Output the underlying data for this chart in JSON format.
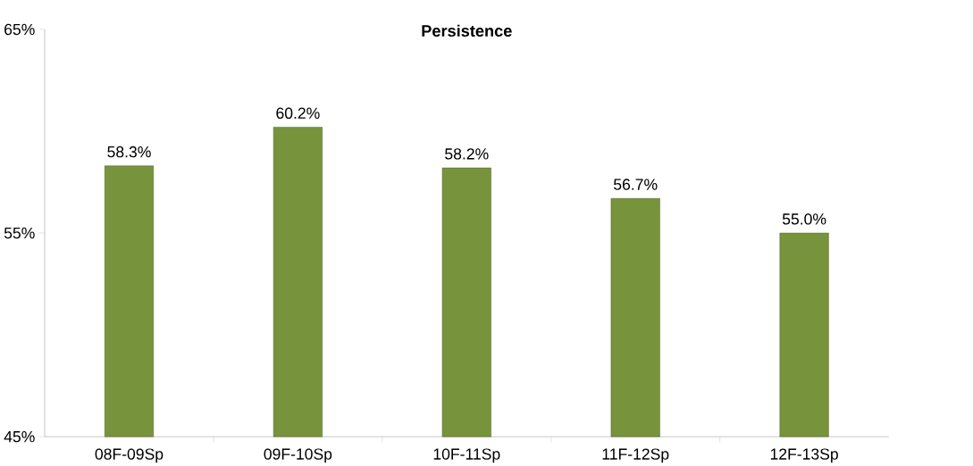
{
  "chart_data": {
    "type": "bar",
    "title": "Persistence",
    "categories": [
      "08F-09Sp",
      "09F-10Sp",
      "10F-11Sp",
      "11F-12Sp",
      "12F-13Sp"
    ],
    "values": [
      58.3,
      60.2,
      58.2,
      56.7,
      55.0
    ],
    "value_labels": [
      "58.3%",
      "60.2%",
      "58.2%",
      "56.7%",
      "55.0%"
    ],
    "color": "#77933c",
    "ylim": [
      45,
      65
    ],
    "yticks": [
      {
        "value": 45,
        "label": "45%"
      },
      {
        "value": 55,
        "label": "55%"
      },
      {
        "value": 65,
        "label": "65%"
      }
    ]
  }
}
